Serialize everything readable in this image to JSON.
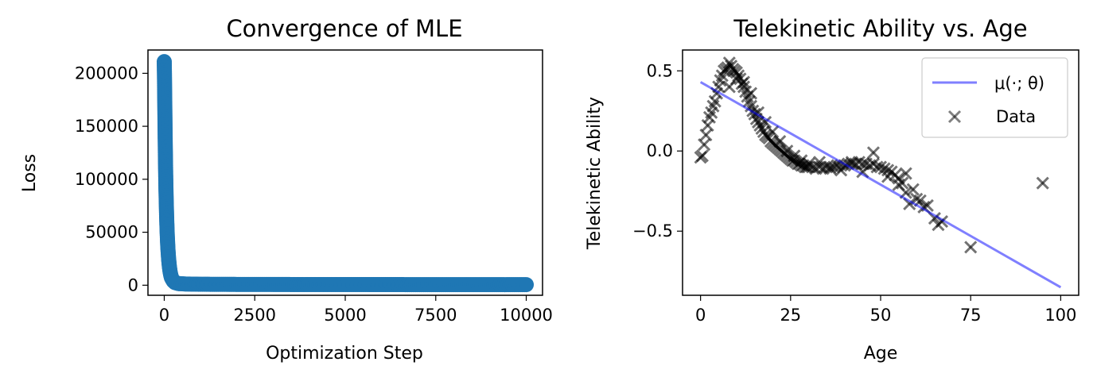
{
  "chart_data": [
    {
      "type": "scatter",
      "title": "Convergence of MLE",
      "xlabel": "Optimization Step",
      "ylabel": "Loss",
      "xlim": [
        -450,
        10450
      ],
      "ylim": [
        -9500,
        222000
      ],
      "xticks": [
        0,
        2500,
        5000,
        7500,
        10000
      ],
      "xtick_labels": [
        "0",
        "2500",
        "5000",
        "7500",
        "10000"
      ],
      "yticks": [
        0,
        50000,
        100000,
        150000,
        200000
      ],
      "ytick_labels": [
        "0",
        "50000",
        "100000",
        "150000",
        "200000"
      ],
      "grid": false,
      "color": "#1f77b4",
      "series": [
        {
          "x": [
            0,
            5,
            10,
            15,
            20,
            25,
            30,
            35,
            40,
            45,
            50,
            60,
            70,
            80,
            90,
            100,
            120,
            140,
            160,
            180,
            200,
            250,
            300,
            400,
            600,
            1000,
            1500,
            2000,
            2500,
            3000,
            3500,
            4000,
            4500,
            5000,
            5500,
            6000,
            6500,
            7000,
            7500,
            8000,
            8500,
            9000,
            9500,
            10000
          ],
          "y": [
            211000,
            200000,
            185000,
            170000,
            155000,
            140000,
            127000,
            115000,
            104000,
            94000,
            86000,
            72000,
            60000,
            50000,
            42000,
            35000,
            25000,
            18000,
            13000,
            9500,
            7000,
            4000,
            2400,
            1500,
            1100,
            900,
            800,
            750,
            700,
            680,
            660,
            640,
            620,
            600,
            590,
            580,
            570,
            560,
            550,
            540,
            530,
            520,
            510,
            500
          ]
        }
      ]
    },
    {
      "type": "scatter",
      "title": "Telekinetic Ability vs. Age",
      "xlabel": "Age",
      "ylabel": "Telekinetic Ability",
      "xlim": [
        -5,
        105
      ],
      "ylim": [
        -0.9,
        0.63
      ],
      "xticks": [
        0,
        25,
        50,
        75,
        100
      ],
      "xtick_labels": [
        "0",
        "25",
        "50",
        "75",
        "100"
      ],
      "yticks": [
        -0.5,
        0.0,
        0.5
      ],
      "ytick_labels": [
        "−0.5",
        "0.0",
        "0.5"
      ],
      "grid": false,
      "legend_position": "top-right",
      "series": [
        {
          "name": "μ(·; θ)",
          "kind": "line",
          "color": "#0000ff",
          "x": [
            0,
            100
          ],
          "y": [
            0.43,
            -0.85
          ]
        },
        {
          "name": "Data",
          "kind": "scatter",
          "marker": "x",
          "color": "#000000",
          "x": [
            0,
            0.5,
            1,
            1.5,
            2,
            2.5,
            3,
            3.5,
            4,
            4.5,
            5,
            5.5,
            6,
            6.5,
            7,
            7.5,
            8,
            8.5,
            9,
            9.5,
            10,
            10.5,
            11,
            11.5,
            12,
            12.5,
            13,
            13.5,
            14,
            14.5,
            15,
            15.5,
            16,
            16.5,
            17,
            17.5,
            18,
            18.5,
            19,
            19.5,
            20,
            20.5,
            21,
            21.5,
            22,
            22.5,
            23,
            23.5,
            24,
            24.5,
            25,
            25.5,
            26,
            26.5,
            27,
            27.5,
            28,
            28.5,
            29,
            29.5,
            30,
            31,
            32,
            33,
            34,
            35,
            36,
            37,
            38,
            39,
            40,
            41,
            42,
            43,
            44,
            45,
            46,
            47,
            48,
            49,
            50,
            51,
            52,
            53,
            54,
            55,
            56,
            57,
            58,
            59,
            60,
            61,
            62,
            63,
            65,
            66,
            67,
            75,
            95,
            8,
            10,
            12,
            14,
            16,
            18,
            20,
            22,
            24,
            26,
            28,
            30,
            33,
            36,
            39,
            42,
            45,
            48,
            52,
            55,
            57
          ],
          "y": [
            -0.04,
            -0.03,
            0.04,
            0.1,
            0.16,
            0.21,
            0.24,
            0.28,
            0.31,
            0.36,
            0.4,
            0.44,
            0.47,
            0.5,
            0.51,
            0.52,
            0.55,
            0.53,
            0.51,
            0.5,
            0.49,
            0.47,
            0.45,
            0.42,
            0.4,
            0.37,
            0.34,
            0.31,
            0.28,
            0.25,
            0.23,
            0.2,
            0.18,
            0.16,
            0.14,
            0.12,
            0.1,
            0.09,
            0.08,
            0.06,
            0.05,
            0.04,
            0.03,
            0.02,
            0.01,
            0.0,
            -0.01,
            -0.02,
            -0.03,
            -0.04,
            -0.05,
            -0.06,
            -0.06,
            -0.07,
            -0.08,
            -0.08,
            -0.09,
            -0.09,
            -0.1,
            -0.1,
            -0.1,
            -0.1,
            -0.11,
            -0.1,
            -0.11,
            -0.1,
            -0.1,
            -0.1,
            -0.09,
            -0.09,
            -0.09,
            -0.08,
            -0.08,
            -0.08,
            -0.07,
            -0.08,
            -0.08,
            -0.09,
            -0.01,
            -0.1,
            -0.1,
            -0.11,
            -0.12,
            -0.13,
            -0.15,
            -0.17,
            -0.2,
            -0.14,
            -0.33,
            -0.24,
            -0.3,
            -0.31,
            -0.35,
            -0.34,
            -0.42,
            -0.46,
            -0.44,
            -0.6,
            -0.2,
            0.4,
            0.45,
            0.43,
            0.36,
            0.24,
            0.18,
            0.12,
            0.06,
            0.0,
            -0.03,
            -0.06,
            -0.08,
            -0.07,
            -0.11,
            -0.12,
            -0.07,
            -0.13,
            -0.08,
            -0.16,
            -0.21,
            -0.26
          ]
        }
      ]
    }
  ]
}
